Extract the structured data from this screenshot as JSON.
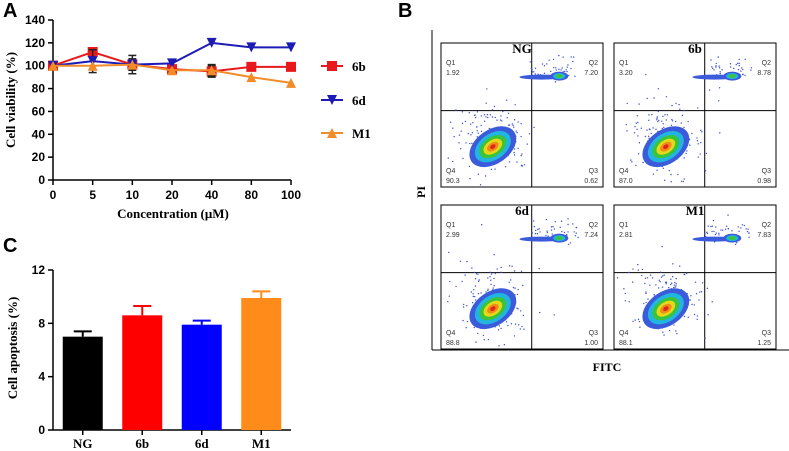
{
  "panels": {
    "a": "A",
    "b": "B",
    "c": "C"
  },
  "chart_data": [
    {
      "type": "line",
      "panel": "A",
      "xlabel": "Concentration (μM)",
      "ylabel": "Cell viability (%)",
      "categories": [
        "0",
        "5",
        "10",
        "20",
        "40",
        "80",
        "100"
      ],
      "ylim": [
        0,
        140
      ],
      "yticks": [
        "0",
        "20",
        "40",
        "60",
        "80",
        "100",
        "120",
        "140"
      ],
      "series": [
        {
          "name": "6b",
          "color": "#e8191c",
          "marker": "square",
          "values": [
            100,
            112,
            101,
            97,
            95,
            99,
            99
          ],
          "errors": [
            0,
            2,
            8,
            3,
            5,
            0,
            0
          ]
        },
        {
          "name": "6d",
          "color": "#1c1cb5",
          "marker": "triangle-down",
          "values": [
            100,
            104,
            101,
            102,
            120,
            116,
            116
          ],
          "errors": [
            0,
            10,
            5,
            0,
            0,
            0,
            0
          ]
        },
        {
          "name": "M1",
          "color": "#f28c28",
          "marker": "triangle-up",
          "values": [
            100,
            100,
            101,
            96,
            96,
            90,
            85
          ],
          "errors": [
            0,
            0,
            0,
            0,
            5,
            0,
            0
          ]
        }
      ]
    },
    {
      "type": "bar",
      "panel": "C",
      "xlabel": "",
      "ylabel": "Cell apoptosis (%)",
      "categories": [
        "NG",
        "6b",
        "6d",
        "M1"
      ],
      "values": [
        7.0,
        8.6,
        7.9,
        9.9
      ],
      "errors": [
        0.4,
        0.7,
        0.3,
        0.5
      ],
      "colors": [
        "#000000",
        "#ff0000",
        "#0000ff",
        "#ff8c1a"
      ],
      "ylim": [
        0,
        12
      ],
      "yticks": [
        "0",
        "4",
        "8",
        "12"
      ]
    },
    {
      "type": "scatter",
      "panel": "B",
      "xlabel": "FITC",
      "ylabel": "PI",
      "plots": [
        {
          "title": "NG",
          "q1": "Q1",
          "q1v": "1.92",
          "q2": "Q2",
          "q2v": "7.20",
          "q3": "Q3",
          "q3v": "0.62",
          "q4": "Q4",
          "q4v": "90.3"
        },
        {
          "title": "6b",
          "q1": "Q1",
          "q1v": "3.20",
          "q2": "Q2",
          "q2v": "8.78",
          "q3": "Q3",
          "q3v": "0.98",
          "q4": "Q4",
          "q4v": "87.0"
        },
        {
          "title": "6d",
          "q1": "Q1",
          "q1v": "2.99",
          "q2": "Q2",
          "q2v": "7.24",
          "q3": "Q3",
          "q3v": "1.00",
          "q4": "Q4",
          "q4v": "88.8"
        },
        {
          "title": "M1",
          "q1": "Q1",
          "q1v": "2.81",
          "q2": "Q2",
          "q2v": "7.83",
          "q3": "Q3",
          "q3v": "1.25",
          "q4": "Q4",
          "q4v": "88.1"
        }
      ]
    }
  ]
}
